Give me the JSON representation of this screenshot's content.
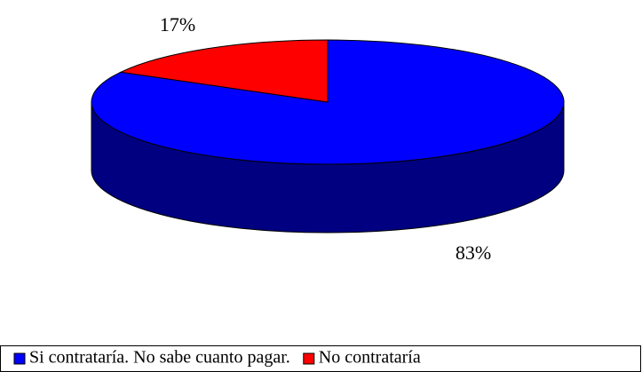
{
  "chart_data": {
    "type": "pie",
    "categories": [
      "Si contrataría. No sabe cuanto pagar.",
      "No contrataría"
    ],
    "values": [
      83,
      17
    ],
    "value_labels": [
      "83%",
      "17%"
    ],
    "colors": [
      "#0000ff",
      "#ff0000"
    ]
  }
}
